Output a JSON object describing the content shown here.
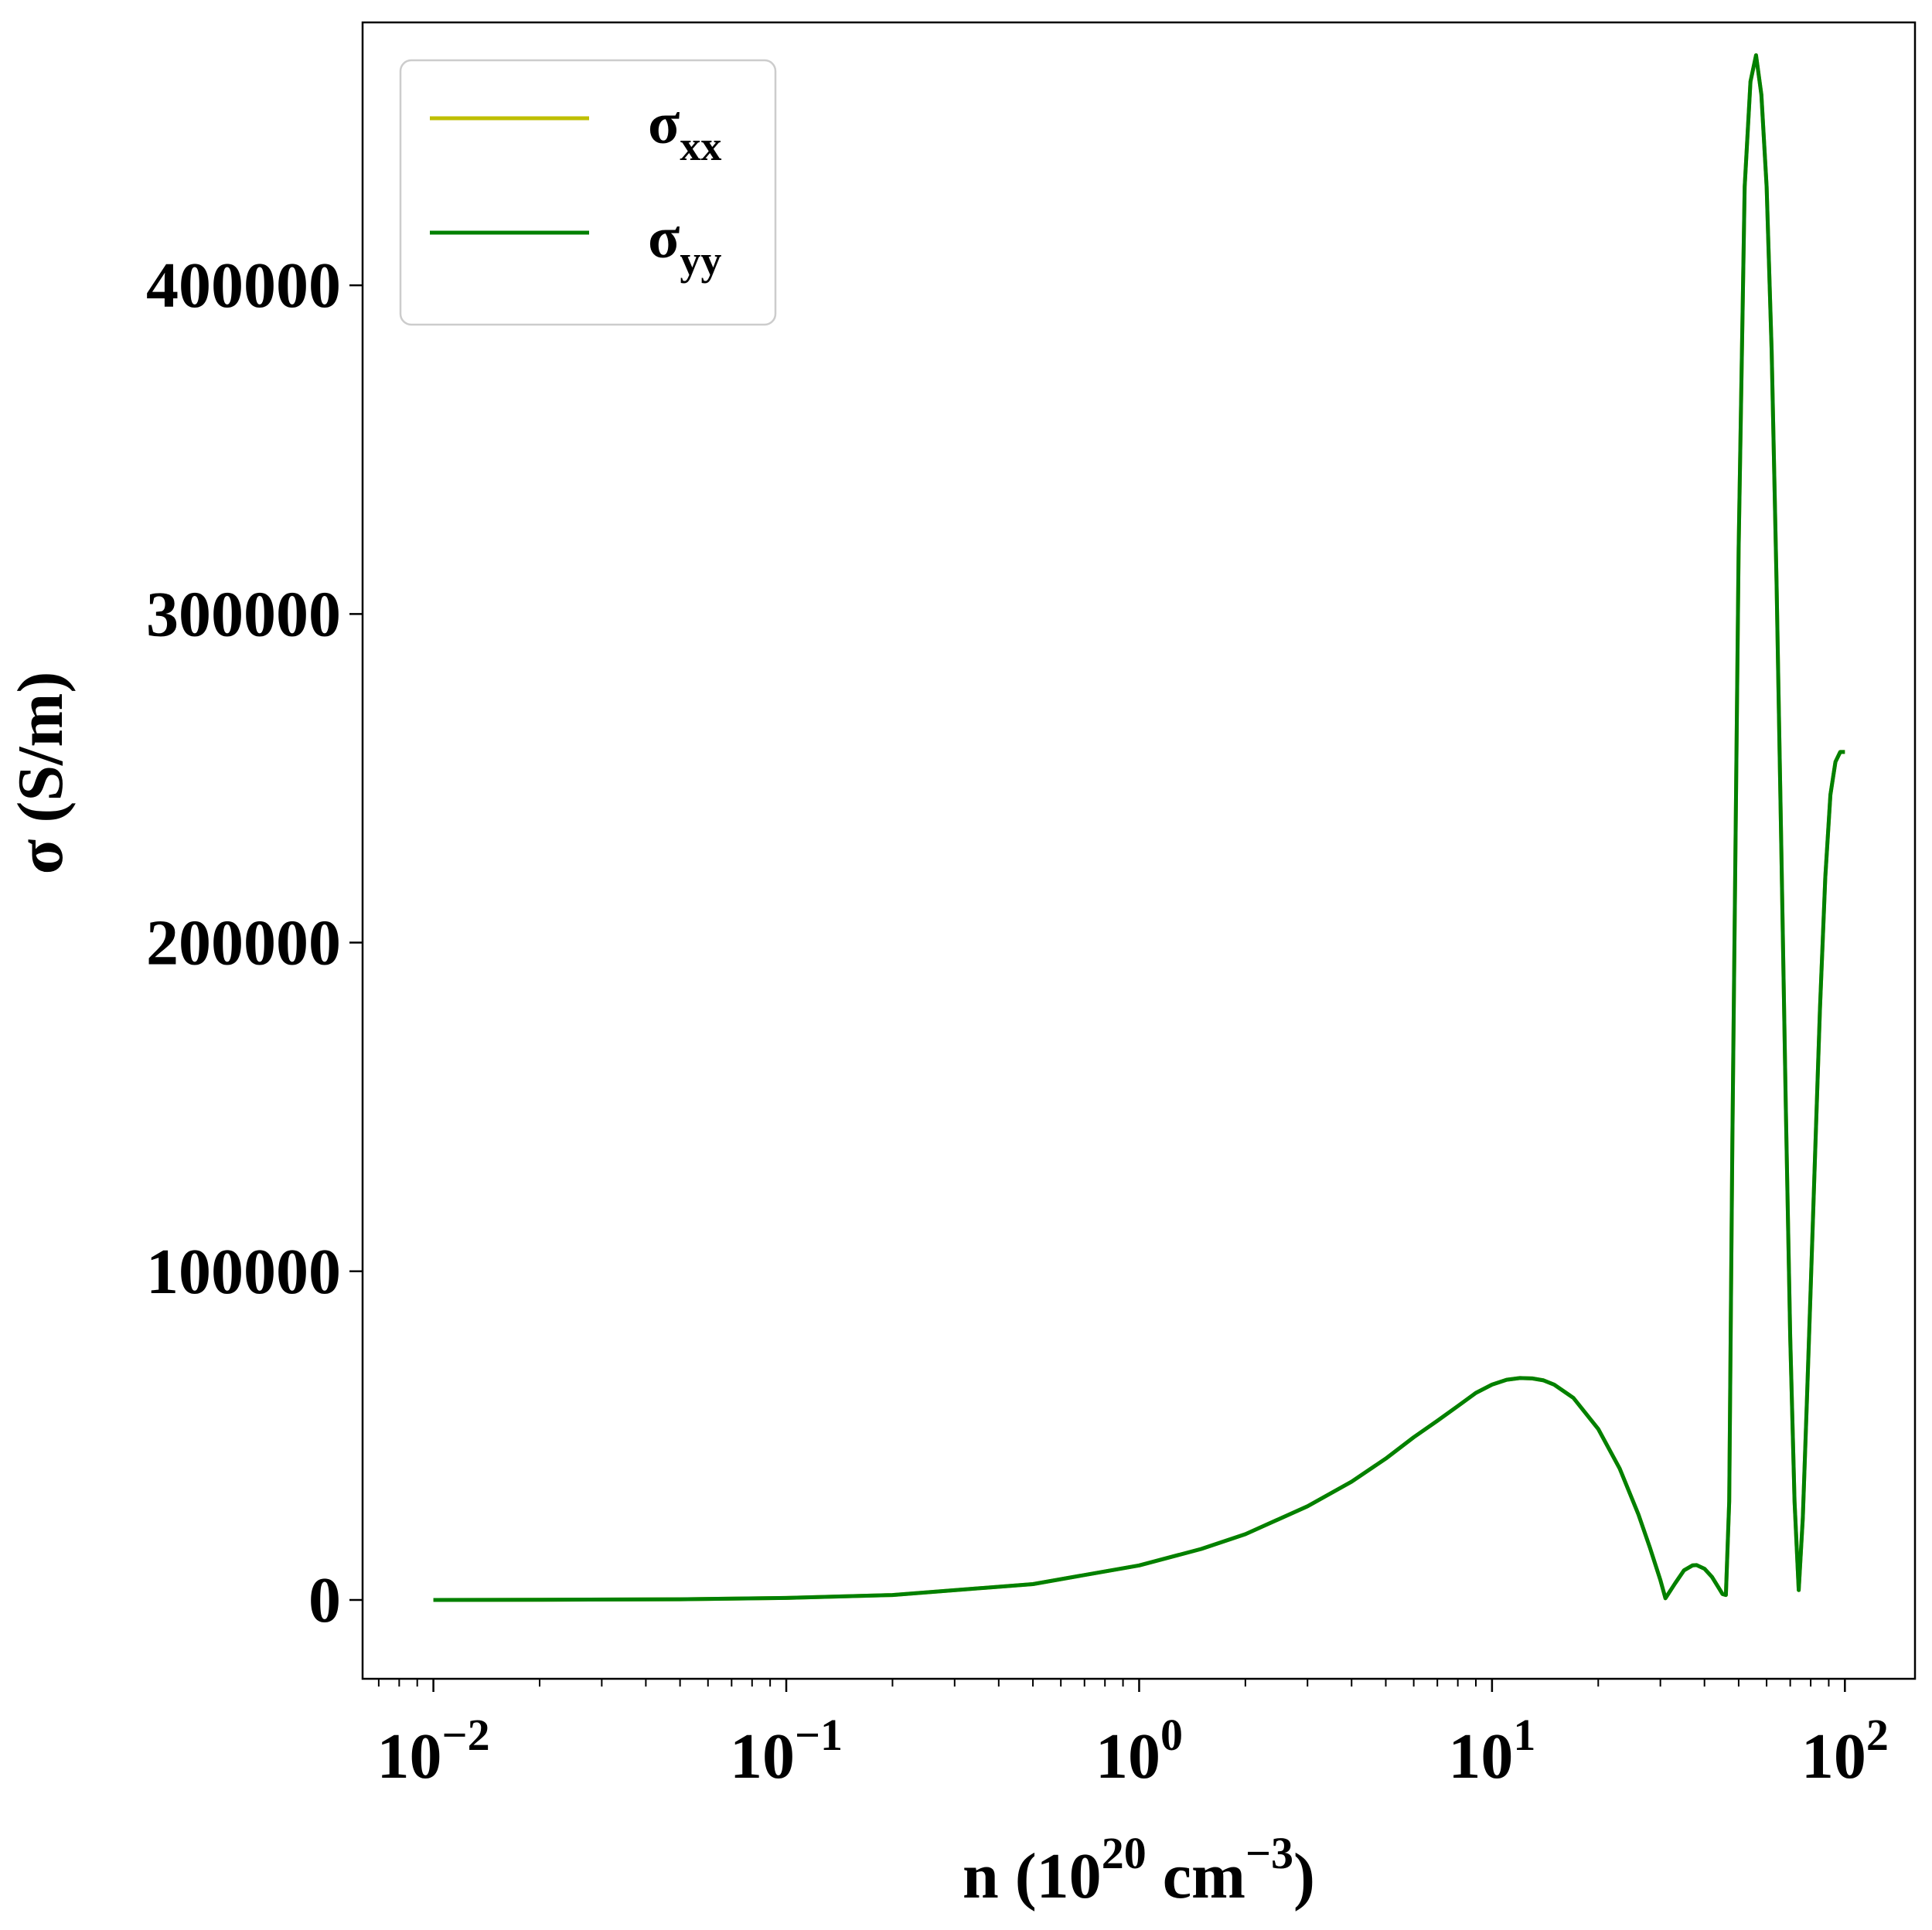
{
  "chart_data": {
    "type": "line",
    "title": "",
    "xlabel": {
      "base": "n (10",
      "sup1": "20",
      "mid": " cm",
      "sup2": "−3",
      "end": ")"
    },
    "ylabel": "σ (S/m)",
    "x_scale": "log",
    "xlim": [
      0.0063,
      158
    ],
    "ylim": [
      -24000,
      480000
    ],
    "x_ticks": [
      {
        "value": 0.01,
        "base": "10",
        "exp": "−2"
      },
      {
        "value": 0.1,
        "base": "10",
        "exp": "−1"
      },
      {
        "value": 1,
        "base": "10",
        "exp": "0"
      },
      {
        "value": 10,
        "base": "10",
        "exp": "1"
      },
      {
        "value": 100,
        "base": "10",
        "exp": "2"
      }
    ],
    "y_ticks": [
      {
        "value": 0,
        "label": "0"
      },
      {
        "value": 100000,
        "label": "100000"
      },
      {
        "value": 200000,
        "label": "200000"
      },
      {
        "value": 300000,
        "label": "300000"
      },
      {
        "value": 400000,
        "label": "400000"
      }
    ],
    "grid": false,
    "legend_position": "top-left",
    "legend": [
      {
        "symbol": "σ",
        "sub": "xx",
        "color": "#bfbf00"
      },
      {
        "symbol": "σ",
        "sub": "yy",
        "color": "#008000"
      }
    ],
    "series": [
      {
        "name": "σxx",
        "color": "#bfbf00",
        "x": [
          0.01,
          0.02,
          0.05,
          0.1,
          0.2,
          0.5,
          1,
          1.5,
          2,
          3,
          4,
          5,
          6,
          7,
          8,
          9,
          10,
          11,
          12,
          13,
          14,
          15,
          17,
          20,
          23,
          26,
          28,
          30,
          31,
          33,
          35,
          37,
          38,
          40,
          42,
          44,
          45,
          46,
          47,
          48,
          50,
          52,
          54,
          56,
          58,
          60,
          62,
          64,
          66,
          68,
          70,
          72,
          74,
          76,
          78,
          80,
          82,
          85,
          88,
          91,
          94,
          97,
          100
        ],
        "y": [
          0,
          60,
          200,
          600,
          1500,
          4800,
          10500,
          15500,
          20000,
          28500,
          36000,
          43000,
          49500,
          54500,
          59000,
          63000,
          65500,
          67000,
          67500,
          67400,
          66800,
          65500,
          61500,
          52000,
          40000,
          26000,
          16000,
          6000,
          500,
          5000,
          9000,
          10500,
          10600,
          9500,
          7000,
          3500,
          1800,
          1500,
          30000,
          140000,
          320000,
          430000,
          462000,
          470000,
          458000,
          430000,
          380000,
          310000,
          230000,
          150000,
          80000,
          30000,
          3000,
          25000,
          60000,
          95000,
          130000,
          180000,
          220000,
          245000,
          255000,
          258000,
          258000
        ]
      },
      {
        "name": "σyy",
        "color": "#008000",
        "x": [
          0.01,
          0.02,
          0.05,
          0.1,
          0.2,
          0.5,
          1,
          1.5,
          2,
          3,
          4,
          5,
          6,
          7,
          8,
          9,
          10,
          11,
          12,
          13,
          14,
          15,
          17,
          20,
          23,
          26,
          28,
          30,
          31,
          33,
          35,
          37,
          38,
          40,
          42,
          44,
          45,
          46,
          47,
          48,
          50,
          52,
          54,
          56,
          58,
          60,
          62,
          64,
          66,
          68,
          70,
          72,
          74,
          76,
          78,
          80,
          82,
          85,
          88,
          91,
          94,
          97,
          100
        ],
        "y": [
          0,
          60,
          200,
          600,
          1500,
          4800,
          10500,
          15500,
          20000,
          28500,
          36000,
          43000,
          49500,
          54500,
          59000,
          63000,
          65500,
          67000,
          67500,
          67400,
          66800,
          65500,
          61500,
          52000,
          40000,
          26000,
          16000,
          6000,
          500,
          5000,
          9000,
          10500,
          10600,
          9500,
          7000,
          3500,
          1800,
          1500,
          30000,
          140000,
          320000,
          430000,
          462000,
          470000,
          458000,
          430000,
          380000,
          310000,
          230000,
          150000,
          80000,
          30000,
          3000,
          25000,
          60000,
          95000,
          130000,
          180000,
          220000,
          245000,
          255000,
          258000,
          258000
        ]
      }
    ]
  }
}
